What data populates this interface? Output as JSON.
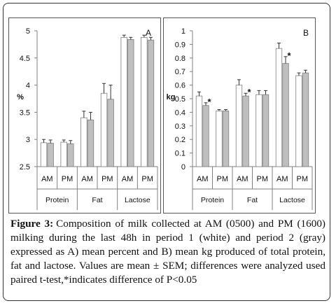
{
  "figure": {
    "caption_label": "Figure 3:",
    "caption_text": "Composition of milk collected at AM (0500) and PM (1600) milking during the last 48h in period 1 (white) and period 2 (gray) expressed as A) mean percent and B) mean kg produced of total protein, fat and lactose. Values are mean ± SEM; differences were analyzed used paired t-test,*indicates difference of P<0.05"
  },
  "colors": {
    "period1": "#ffffff",
    "period2": "#bfbfbf",
    "axis": "#808080",
    "bar_stroke": "#7f7f7f",
    "text": "#111111"
  },
  "chart_data": [
    {
      "type": "bar",
      "panel_label": "A",
      "ylabel": "%",
      "ylim": [
        2.5,
        5
      ],
      "yticks": [
        "2.5",
        "3",
        "3.5",
        "4",
        "4.5",
        "5"
      ],
      "grid": false,
      "categories": [
        "AM",
        "PM",
        "AM",
        "PM",
        "AM",
        "PM"
      ],
      "groups": [
        {
          "label": "Protein",
          "span": 2
        },
        {
          "label": "Fat",
          "span": 2
        },
        {
          "label": "Lactose",
          "span": 2
        }
      ],
      "series": [
        {
          "period": 1,
          "values": [
            2.94,
            2.95,
            3.4,
            3.85,
            4.88,
            4.88
          ],
          "errors": [
            0.06,
            0.04,
            0.12,
            0.18,
            0.04,
            0.04
          ]
        },
        {
          "period": 2,
          "values": [
            2.93,
            2.92,
            3.36,
            3.74,
            4.84,
            4.83
          ],
          "errors": [
            0.06,
            0.06,
            0.14,
            0.26,
            0.04,
            0.05
          ]
        }
      ],
      "annotations": []
    },
    {
      "type": "bar",
      "panel_label": "B",
      "ylabel": "kg",
      "ylim": [
        0,
        1
      ],
      "yticks": [
        "0",
        "0.1",
        "0.2",
        "0.3",
        "0.4",
        "0.5",
        "0.6",
        "0.7",
        "0.8",
        "0.9",
        "1"
      ],
      "grid": false,
      "categories": [
        "AM",
        "PM",
        "AM",
        "PM",
        "AM",
        "PM"
      ],
      "groups": [
        {
          "label": "Protein",
          "span": 2
        },
        {
          "label": "Fat",
          "span": 2
        },
        {
          "label": "Lactose",
          "span": 2
        }
      ],
      "series": [
        {
          "period": 1,
          "values": [
            0.52,
            0.41,
            0.6,
            0.53,
            0.87,
            0.67
          ],
          "errors": [
            0.03,
            0.01,
            0.04,
            0.03,
            0.04,
            0.02
          ]
        },
        {
          "period": 2,
          "values": [
            0.45,
            0.41,
            0.52,
            0.53,
            0.76,
            0.69
          ],
          "errors": [
            0.02,
            0.01,
            0.02,
            0.03,
            0.05,
            0.02
          ]
        }
      ],
      "annotations": [
        {
          "category_index": 0,
          "text": "*"
        },
        {
          "category_index": 2,
          "text": "*"
        },
        {
          "category_index": 4,
          "text": "*"
        }
      ]
    }
  ]
}
